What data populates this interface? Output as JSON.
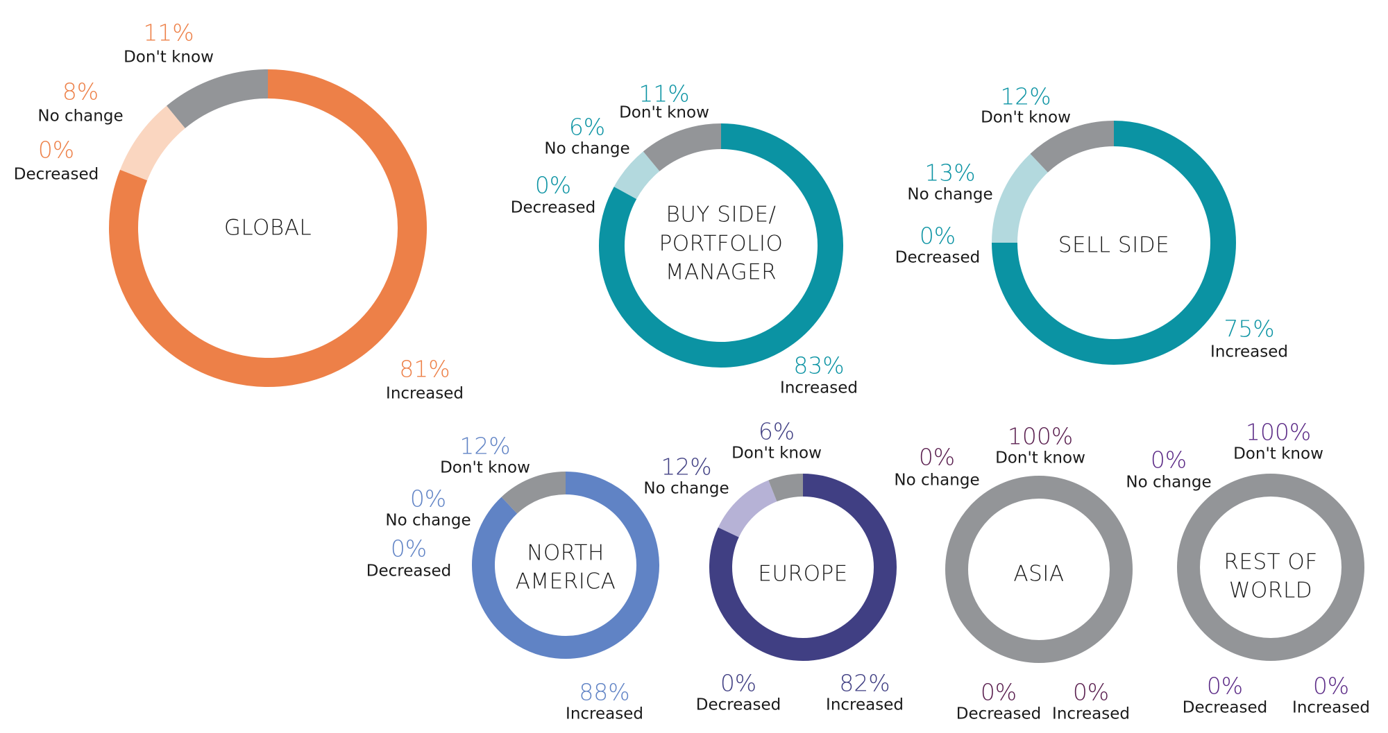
{
  "chart_data": [
    {
      "type": "pie",
      "title": "GLOBAL",
      "value_color": "#ed8048",
      "slices": [
        {
          "label": "Increased",
          "value": 81,
          "display": "81%",
          "color": "#ed8048"
        },
        {
          "label": "Decreased",
          "value": 0,
          "display": "0%",
          "color": "#ed8048"
        },
        {
          "label": "No change",
          "value": 8,
          "display": "8%",
          "color": "#fad6c0"
        },
        {
          "label": "Don't know",
          "value": 11,
          "display": "11%",
          "color": "#939598"
        }
      ]
    },
    {
      "type": "pie",
      "title": "BUY SIDE/ PORTFOLIO MANAGER",
      "value_color": "#0b93a3",
      "slices": [
        {
          "label": "Increased",
          "value": 83,
          "display": "83%",
          "color": "#0b93a3"
        },
        {
          "label": "Decreased",
          "value": 0,
          "display": "0%",
          "color": "#0b93a3"
        },
        {
          "label": "No change",
          "value": 6,
          "display": "6%",
          "color": "#b3d9de"
        },
        {
          "label": "Don't know",
          "value": 11,
          "display": "11%",
          "color": "#939598"
        }
      ]
    },
    {
      "type": "pie",
      "title": "SELL SIDE",
      "value_color": "#0b93a3",
      "slices": [
        {
          "label": "Increased",
          "value": 75,
          "display": "75%",
          "color": "#0b93a3"
        },
        {
          "label": "Decreased",
          "value": 0,
          "display": "0%",
          "color": "#0b93a3"
        },
        {
          "label": "No change",
          "value": 13,
          "display": "13%",
          "color": "#b3d9de"
        },
        {
          "label": "Don't know",
          "value": 12,
          "display": "12%",
          "color": "#939598"
        }
      ]
    },
    {
      "type": "pie",
      "title": "NORTH AMERICA",
      "value_color": "#6083c5",
      "slices": [
        {
          "label": "Increased",
          "value": 88,
          "display": "88%",
          "color": "#6083c5"
        },
        {
          "label": "Decreased",
          "value": 0,
          "display": "0%",
          "color": "#6083c5"
        },
        {
          "label": "No change",
          "value": 0,
          "display": "0%",
          "color": "#6083c5"
        },
        {
          "label": "Don't know",
          "value": 12,
          "display": "12%",
          "color": "#939598"
        }
      ]
    },
    {
      "type": "pie",
      "title": "EUROPE",
      "value_color": "#403f83",
      "slices": [
        {
          "label": "Increased",
          "value": 82,
          "display": "82%",
          "color": "#403f83"
        },
        {
          "label": "Decreased",
          "value": 0,
          "display": "0%",
          "color": "#403f83"
        },
        {
          "label": "No change",
          "value": 12,
          "display": "12%",
          "color": "#b6b2d6"
        },
        {
          "label": "Don't know",
          "value": 6,
          "display": "6%",
          "color": "#939598"
        }
      ]
    },
    {
      "type": "pie",
      "title": "ASIA",
      "value_color": "#5a1f4f",
      "slices": [
        {
          "label": "Increased",
          "value": 0,
          "display": "0%",
          "color": "#5a1f4f"
        },
        {
          "label": "Decreased",
          "value": 0,
          "display": "0%",
          "color": "#5a1f4f"
        },
        {
          "label": "No change",
          "value": 0,
          "display": "0%",
          "color": "#5a1f4f"
        },
        {
          "label": "Don't know",
          "value": 100,
          "display": "100%",
          "color": "#939598"
        }
      ]
    },
    {
      "type": "pie",
      "title": "REST OF WORLD",
      "value_color": "#5b2a86",
      "slices": [
        {
          "label": "Increased",
          "value": 0,
          "display": "0%",
          "color": "#5b2a86"
        },
        {
          "label": "Decreased",
          "value": 0,
          "display": "0%",
          "color": "#5b2a86"
        },
        {
          "label": "No change",
          "value": 0,
          "display": "0%",
          "color": "#5b2a86"
        },
        {
          "label": "Don't know",
          "value": 100,
          "display": "100%",
          "color": "#939598"
        }
      ]
    }
  ]
}
